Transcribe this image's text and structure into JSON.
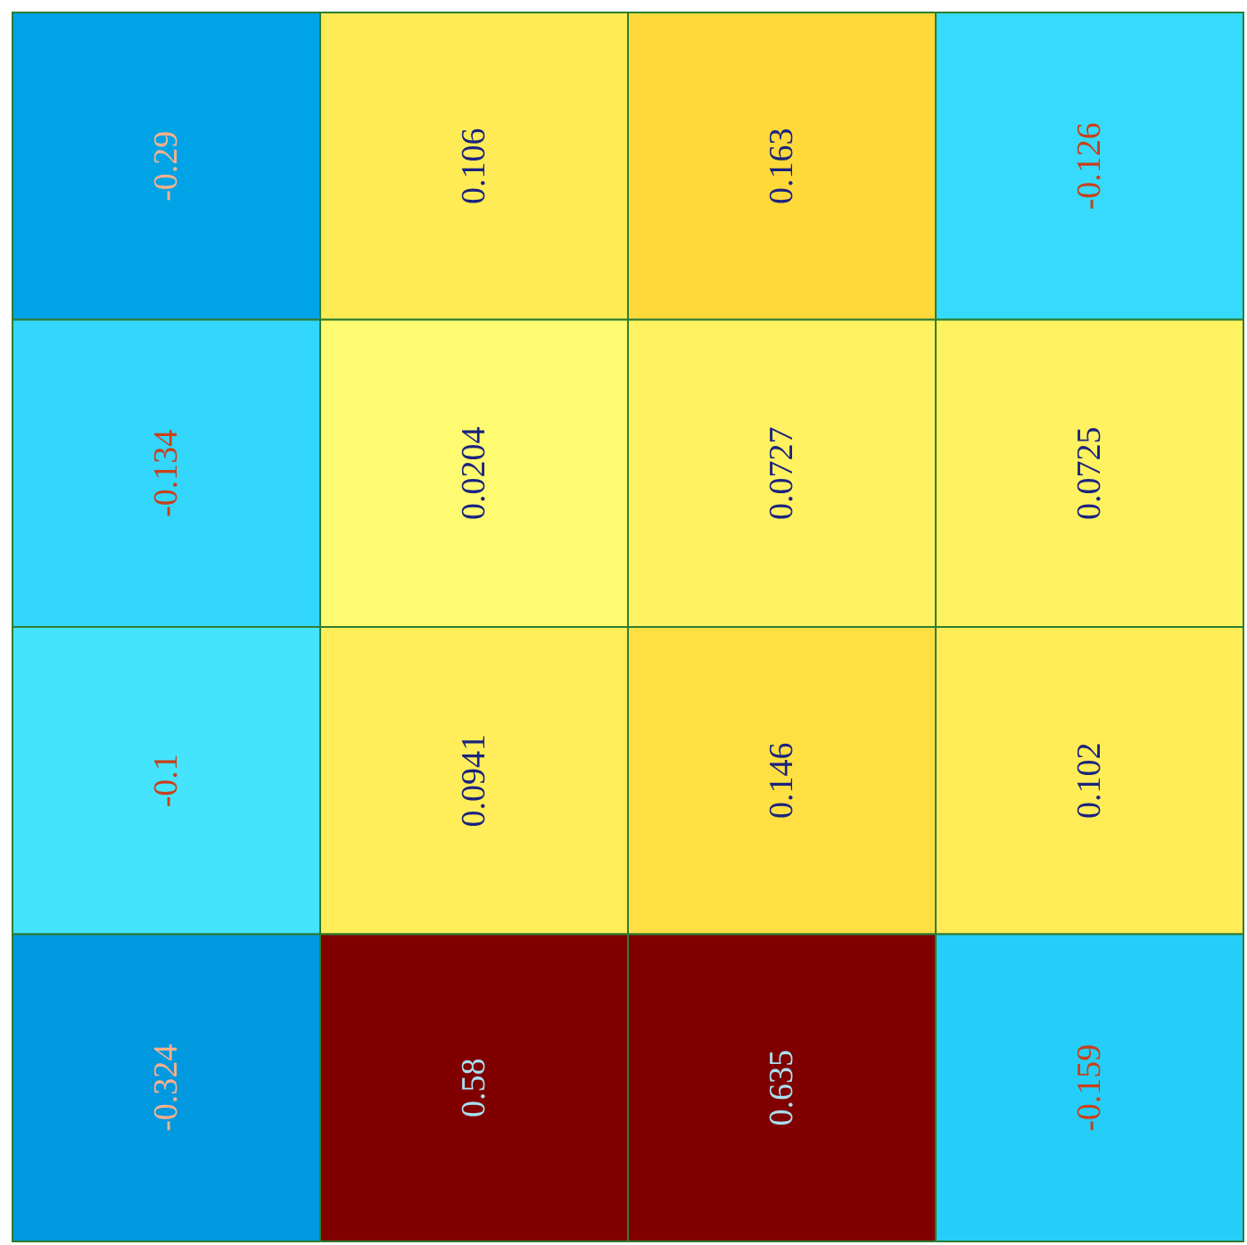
{
  "chart_data": {
    "type": "heatmap",
    "categories": [
      null,
      null,
      null,
      null
    ],
    "y_categories": [
      null,
      null,
      null,
      null
    ],
    "cells": [
      [
        -0.29,
        0.106,
        0.163,
        -0.126
      ],
      [
        -0.134,
        0.0204,
        0.0727,
        0.0725
      ],
      [
        -0.1,
        0.0941,
        0.146,
        0.102
      ],
      [
        -0.324,
        0.58,
        0.635,
        -0.159
      ]
    ],
    "data_labels": true
  }
}
